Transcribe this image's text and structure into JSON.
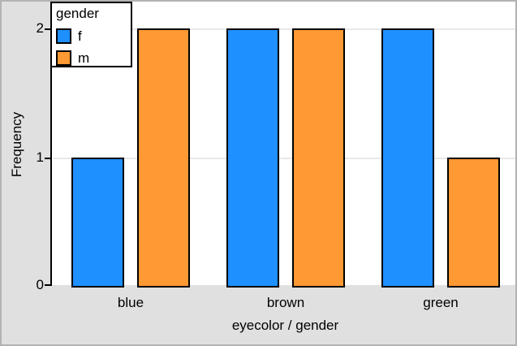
{
  "window": {
    "background_color": "#e0e0e0",
    "frame_color": "#b3b3b3",
    "plot_background": "#ffffff"
  },
  "chart_data": {
    "type": "bar",
    "title": "",
    "categories": [
      "blue",
      "brown",
      "green"
    ],
    "series": [
      {
        "name": "f",
        "color": "#1E90FF",
        "values": [
          1,
          2,
          2
        ]
      },
      {
        "name": "m",
        "color": "#FF9933",
        "values": [
          2,
          2,
          1
        ]
      }
    ],
    "xlabel": "eyecolor / gender",
    "ylabel": "Frequency",
    "yticks": [
      0,
      1,
      2
    ],
    "ylim": [
      0,
      2.2
    ],
    "grid": "horizontal",
    "gridline_color": "#e8e8e8",
    "bar_border_color": "#000000",
    "legend": {
      "title": "gender",
      "position": "top-left",
      "items": [
        {
          "label": "f",
          "color": "#1E90FF"
        },
        {
          "label": "m",
          "color": "#FF9933"
        }
      ]
    }
  }
}
